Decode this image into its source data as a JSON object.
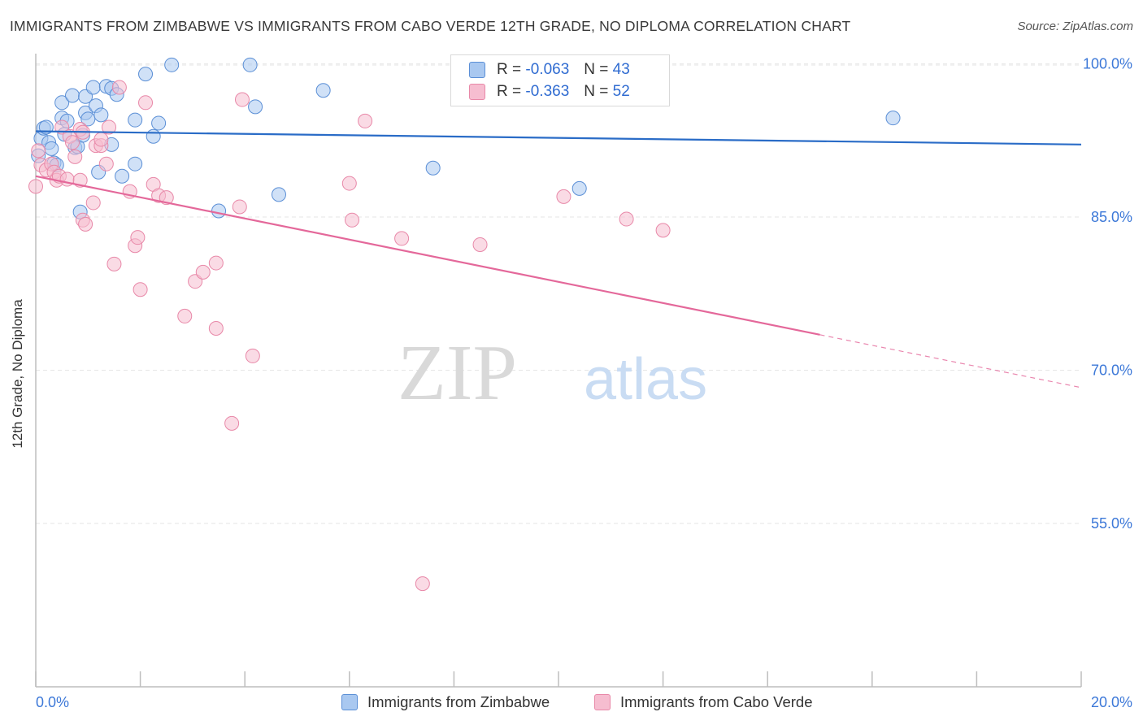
{
  "header": {
    "title": "IMMIGRANTS FROM ZIMBABWE VS IMMIGRANTS FROM CABO VERDE 12TH GRADE, NO DIPLOMA CORRELATION CHART",
    "source": "Source: ZipAtlas.com"
  },
  "watermark": {
    "zip": "ZIP",
    "atlas": "atlas"
  },
  "legend": {
    "rows": [
      {
        "r_label": "R =",
        "r_value": "-0.063",
        "n_label": "N =",
        "n_value": "43"
      },
      {
        "r_label": "R =",
        "r_value": "-0.363",
        "n_label": "N =",
        "n_value": "52"
      }
    ]
  },
  "colors": {
    "blue_fill": "#a9c8f0",
    "blue_stroke": "#5b8fd6",
    "blue_line": "#2a6cc7",
    "pink_fill": "#f6bdd0",
    "pink_stroke": "#e888a8",
    "pink_line": "#e4689a",
    "axis_text": "#3c78d8",
    "grid": "#e6e6e6"
  },
  "chart_data": {
    "type": "scatter",
    "title": "IMMIGRANTS FROM ZIMBABWE VS IMMIGRANTS FROM CABO VERDE 12TH GRADE, NO DIPLOMA CORRELATION CHART",
    "xlabel": "",
    "ylabel": "12th Grade, No Diploma",
    "xlim": [
      0,
      20
    ],
    "ylim": [
      39,
      101
    ],
    "x_tick_labels": [
      "0.0%",
      "20.0%"
    ],
    "y_ticks": [
      55,
      70,
      85,
      100
    ],
    "y_tick_labels": [
      "55.0%",
      "70.0%",
      "85.0%",
      "100.0%"
    ],
    "grid": true,
    "legend_position": "top-center",
    "series": [
      {
        "name": "Immigrants from Zimbabwe",
        "color": "blue",
        "trend": {
          "x": [
            0,
            20
          ],
          "y": [
            93.4,
            92.1
          ],
          "solid_until": 20
        },
        "points": [
          [
            0.1,
            92.7
          ],
          [
            0.15,
            93.7
          ],
          [
            0.2,
            93.8
          ],
          [
            0.25,
            92.3
          ],
          [
            0.3,
            91.7
          ],
          [
            0.35,
            90.3
          ],
          [
            0.4,
            90.1
          ],
          [
            0.5,
            96.2
          ],
          [
            0.5,
            94.7
          ],
          [
            0.55,
            93.1
          ],
          [
            0.6,
            94.4
          ],
          [
            0.7,
            96.9
          ],
          [
            0.75,
            91.8
          ],
          [
            0.8,
            91.9
          ],
          [
            0.85,
            85.5
          ],
          [
            0.9,
            93.0
          ],
          [
            0.95,
            95.2
          ],
          [
            0.95,
            96.8
          ],
          [
            1.0,
            94.6
          ],
          [
            1.1,
            97.7
          ],
          [
            1.15,
            95.9
          ],
          [
            1.2,
            89.4
          ],
          [
            1.25,
            95.0
          ],
          [
            1.35,
            97.8
          ],
          [
            1.45,
            97.6
          ],
          [
            1.45,
            92.1
          ],
          [
            1.55,
            97.0
          ],
          [
            1.65,
            89.0
          ],
          [
            1.9,
            94.5
          ],
          [
            1.9,
            90.2
          ],
          [
            2.1,
            99.0
          ],
          [
            2.25,
            92.9
          ],
          [
            2.35,
            94.2
          ],
          [
            2.6,
            99.9
          ],
          [
            3.5,
            85.6
          ],
          [
            4.1,
            99.9
          ],
          [
            4.2,
            95.8
          ],
          [
            4.65,
            87.2
          ],
          [
            5.5,
            97.4
          ],
          [
            7.6,
            89.8
          ],
          [
            10.4,
            87.8
          ],
          [
            16.4,
            94.7
          ],
          [
            0.05,
            91.0
          ]
        ]
      },
      {
        "name": "Immigrants from Cabo Verde",
        "color": "pink",
        "trend": {
          "x": [
            0,
            20
          ],
          "y": [
            89.0,
            68.3
          ],
          "solid_until": 15.0
        },
        "points": [
          [
            0.0,
            88.0
          ],
          [
            0.05,
            91.5
          ],
          [
            0.1,
            90.1
          ],
          [
            0.2,
            89.6
          ],
          [
            0.3,
            90.2
          ],
          [
            0.35,
            89.4
          ],
          [
            0.4,
            88.6
          ],
          [
            0.45,
            89.0
          ],
          [
            0.5,
            93.8
          ],
          [
            0.6,
            88.7
          ],
          [
            0.65,
            92.9
          ],
          [
            0.7,
            92.3
          ],
          [
            0.75,
            90.9
          ],
          [
            0.85,
            93.6
          ],
          [
            0.85,
            88.6
          ],
          [
            0.9,
            93.3
          ],
          [
            0.9,
            84.7
          ],
          [
            0.95,
            84.3
          ],
          [
            1.1,
            86.4
          ],
          [
            1.15,
            92.0
          ],
          [
            1.25,
            92.0
          ],
          [
            1.25,
            92.6
          ],
          [
            1.35,
            90.2
          ],
          [
            1.4,
            93.8
          ],
          [
            1.5,
            80.4
          ],
          [
            1.6,
            97.7
          ],
          [
            1.8,
            87.5
          ],
          [
            1.9,
            82.2
          ],
          [
            1.95,
            83.0
          ],
          [
            2.0,
            77.9
          ],
          [
            2.1,
            96.2
          ],
          [
            2.25,
            88.2
          ],
          [
            2.35,
            87.1
          ],
          [
            2.5,
            86.9
          ],
          [
            2.85,
            75.3
          ],
          [
            3.05,
            78.7
          ],
          [
            3.2,
            79.6
          ],
          [
            3.45,
            80.5
          ],
          [
            3.45,
            74.1
          ],
          [
            3.75,
            64.8
          ],
          [
            3.9,
            86.0
          ],
          [
            3.95,
            96.5
          ],
          [
            4.15,
            71.4
          ],
          [
            6.0,
            88.3
          ],
          [
            6.05,
            84.7
          ],
          [
            6.3,
            94.4
          ],
          [
            7.0,
            82.9
          ],
          [
            8.5,
            82.3
          ],
          [
            10.1,
            87.0
          ],
          [
            11.3,
            84.8
          ],
          [
            12.0,
            83.7
          ],
          [
            7.4,
            49.1
          ]
        ]
      }
    ]
  },
  "bottom_legend": {
    "items": [
      {
        "label": "Immigrants from Zimbabwe"
      },
      {
        "label": "Immigrants from Cabo Verde"
      }
    ]
  }
}
